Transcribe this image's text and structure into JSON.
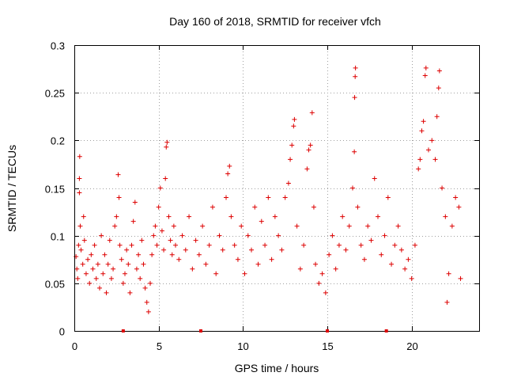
{
  "chart_data": {
    "type": "scatter",
    "title": "Day 160 of 2018, SRMTID for receiver vfch",
    "xlabel": "GPS time / hours",
    "ylabel": "SRMTID / TECUs",
    "xlim": [
      0,
      24
    ],
    "ylim": [
      0,
      0.3
    ],
    "xticks": [
      0,
      5,
      10,
      15,
      20
    ],
    "xtick_labels": [
      "0",
      "5",
      "10",
      "15",
      "20"
    ],
    "yticks": [
      0,
      0.05,
      0.1,
      0.15,
      0.2,
      0.25,
      0.3
    ],
    "ytick_labels": [
      "0",
      "0.05",
      "0.1",
      "0.15",
      "0.2",
      "0.25",
      "0.3"
    ],
    "grid": true,
    "marker": "+",
    "color": "#dd0000",
    "series": [
      {
        "name": "SRMTID",
        "points": [
          [
            0.1,
            0.078
          ],
          [
            0.15,
            0.065
          ],
          [
            0.2,
            0.055
          ],
          [
            0.25,
            0.09
          ],
          [
            0.3,
            0.145
          ],
          [
            0.3,
            0.16
          ],
          [
            0.32,
            0.183
          ],
          [
            0.35,
            0.11
          ],
          [
            0.4,
            0.085
          ],
          [
            0.5,
            0.07
          ],
          [
            0.55,
            0.12
          ],
          [
            0.6,
            0.095
          ],
          [
            0.7,
            0.06
          ],
          [
            0.8,
            0.075
          ],
          [
            0.9,
            0.05
          ],
          [
            1.0,
            0.08
          ],
          [
            1.1,
            0.065
          ],
          [
            1.2,
            0.09
          ],
          [
            1.3,
            0.055
          ],
          [
            1.4,
            0.07
          ],
          [
            1.5,
            0.045
          ],
          [
            1.6,
            0.1
          ],
          [
            1.7,
            0.06
          ],
          [
            1.8,
            0.08
          ],
          [
            1.9,
            0.04
          ],
          [
            2.0,
            0.07
          ],
          [
            2.1,
            0.095
          ],
          [
            2.2,
            0.055
          ],
          [
            2.3,
            0.065
          ],
          [
            2.4,
            0.11
          ],
          [
            2.5,
            0.12
          ],
          [
            2.6,
            0.164
          ],
          [
            2.65,
            0.14
          ],
          [
            2.7,
            0.09
          ],
          [
            2.8,
            0.075
          ],
          [
            2.9,
            0.05
          ],
          [
            3.0,
            0.06
          ],
          [
            3.1,
            0.085
          ],
          [
            3.2,
            0.07
          ],
          [
            3.3,
            0.04
          ],
          [
            3.4,
            0.09
          ],
          [
            3.5,
            0.115
          ],
          [
            3.6,
            0.135
          ],
          [
            3.7,
            0.065
          ],
          [
            3.8,
            0.08
          ],
          [
            3.9,
            0.055
          ],
          [
            4.0,
            0.095
          ],
          [
            4.1,
            0.07
          ],
          [
            4.2,
            0.045
          ],
          [
            4.3,
            0.03
          ],
          [
            4.4,
            0.02
          ],
          [
            4.5,
            0.05
          ],
          [
            4.6,
            0.08
          ],
          [
            4.7,
            0.1
          ],
          [
            4.8,
            0.11
          ],
          [
            4.9,
            0.09
          ],
          [
            5.0,
            0.13
          ],
          [
            5.1,
            0.15
          ],
          [
            5.2,
            0.105
          ],
          [
            5.3,
            0.085
          ],
          [
            5.4,
            0.16
          ],
          [
            5.45,
            0.193
          ],
          [
            5.5,
            0.198
          ],
          [
            5.6,
            0.12
          ],
          [
            5.7,
            0.095
          ],
          [
            5.8,
            0.08
          ],
          [
            5.9,
            0.11
          ],
          [
            6.0,
            0.09
          ],
          [
            6.2,
            0.075
          ],
          [
            6.4,
            0.1
          ],
          [
            6.6,
            0.085
          ],
          [
            6.8,
            0.12
          ],
          [
            7.0,
            0.065
          ],
          [
            7.2,
            0.095
          ],
          [
            7.4,
            0.08
          ],
          [
            7.6,
            0.11
          ],
          [
            7.8,
            0.07
          ],
          [
            8.0,
            0.09
          ],
          [
            8.2,
            0.13
          ],
          [
            8.4,
            0.06
          ],
          [
            8.6,
            0.1
          ],
          [
            8.8,
            0.085
          ],
          [
            9.0,
            0.14
          ],
          [
            9.1,
            0.165
          ],
          [
            9.2,
            0.173
          ],
          [
            9.3,
            0.12
          ],
          [
            9.5,
            0.09
          ],
          [
            9.7,
            0.075
          ],
          [
            9.9,
            0.11
          ],
          [
            10.1,
            0.06
          ],
          [
            10.3,
            0.1
          ],
          [
            10.5,
            0.085
          ],
          [
            10.7,
            0.13
          ],
          [
            10.9,
            0.07
          ],
          [
            11.1,
            0.115
          ],
          [
            11.3,
            0.09
          ],
          [
            11.5,
            0.14
          ],
          [
            11.7,
            0.075
          ],
          [
            11.9,
            0.12
          ],
          [
            12.1,
            0.1
          ],
          [
            12.3,
            0.085
          ],
          [
            12.5,
            0.14
          ],
          [
            12.7,
            0.155
          ],
          [
            12.8,
            0.18
          ],
          [
            12.9,
            0.195
          ],
          [
            13.0,
            0.215
          ],
          [
            13.05,
            0.222
          ],
          [
            13.2,
            0.11
          ],
          [
            13.4,
            0.065
          ],
          [
            13.6,
            0.09
          ],
          [
            13.8,
            0.17
          ],
          [
            13.9,
            0.19
          ],
          [
            14.0,
            0.195
          ],
          [
            14.1,
            0.229
          ],
          [
            14.2,
            0.13
          ],
          [
            14.3,
            0.07
          ],
          [
            14.5,
            0.05
          ],
          [
            14.7,
            0.06
          ],
          [
            14.9,
            0.04
          ],
          [
            15.1,
            0.08
          ],
          [
            15.3,
            0.1
          ],
          [
            15.5,
            0.065
          ],
          [
            15.7,
            0.09
          ],
          [
            15.9,
            0.12
          ],
          [
            16.1,
            0.085
          ],
          [
            16.3,
            0.11
          ],
          [
            16.5,
            0.15
          ],
          [
            16.6,
            0.188
          ],
          [
            16.62,
            0.245
          ],
          [
            16.65,
            0.267
          ],
          [
            16.67,
            0.276
          ],
          [
            16.8,
            0.13
          ],
          [
            17.0,
            0.09
          ],
          [
            17.2,
            0.075
          ],
          [
            17.4,
            0.11
          ],
          [
            17.6,
            0.095
          ],
          [
            17.8,
            0.16
          ],
          [
            18.0,
            0.12
          ],
          [
            18.2,
            0.08
          ],
          [
            18.4,
            0.1
          ],
          [
            18.6,
            0.14
          ],
          [
            18.8,
            0.07
          ],
          [
            19.0,
            0.09
          ],
          [
            19.2,
            0.11
          ],
          [
            19.4,
            0.085
          ],
          [
            19.6,
            0.065
          ],
          [
            19.8,
            0.075
          ],
          [
            20.0,
            0.055
          ],
          [
            20.2,
            0.09
          ],
          [
            20.4,
            0.17
          ],
          [
            20.5,
            0.18
          ],
          [
            20.6,
            0.21
          ],
          [
            20.7,
            0.22
          ],
          [
            20.8,
            0.268
          ],
          [
            20.85,
            0.276
          ],
          [
            21.0,
            0.19
          ],
          [
            21.2,
            0.2
          ],
          [
            21.4,
            0.18
          ],
          [
            21.5,
            0.225
          ],
          [
            21.6,
            0.255
          ],
          [
            21.65,
            0.273
          ],
          [
            21.8,
            0.15
          ],
          [
            22.0,
            0.12
          ],
          [
            22.1,
            0.03
          ],
          [
            22.2,
            0.06
          ],
          [
            22.4,
            0.11
          ],
          [
            22.6,
            0.14
          ],
          [
            22.8,
            0.13
          ],
          [
            22.9,
            0.055
          ]
        ]
      }
    ],
    "axis_markers_x": [
      2.9,
      7.5,
      15.0,
      18.5
    ]
  }
}
